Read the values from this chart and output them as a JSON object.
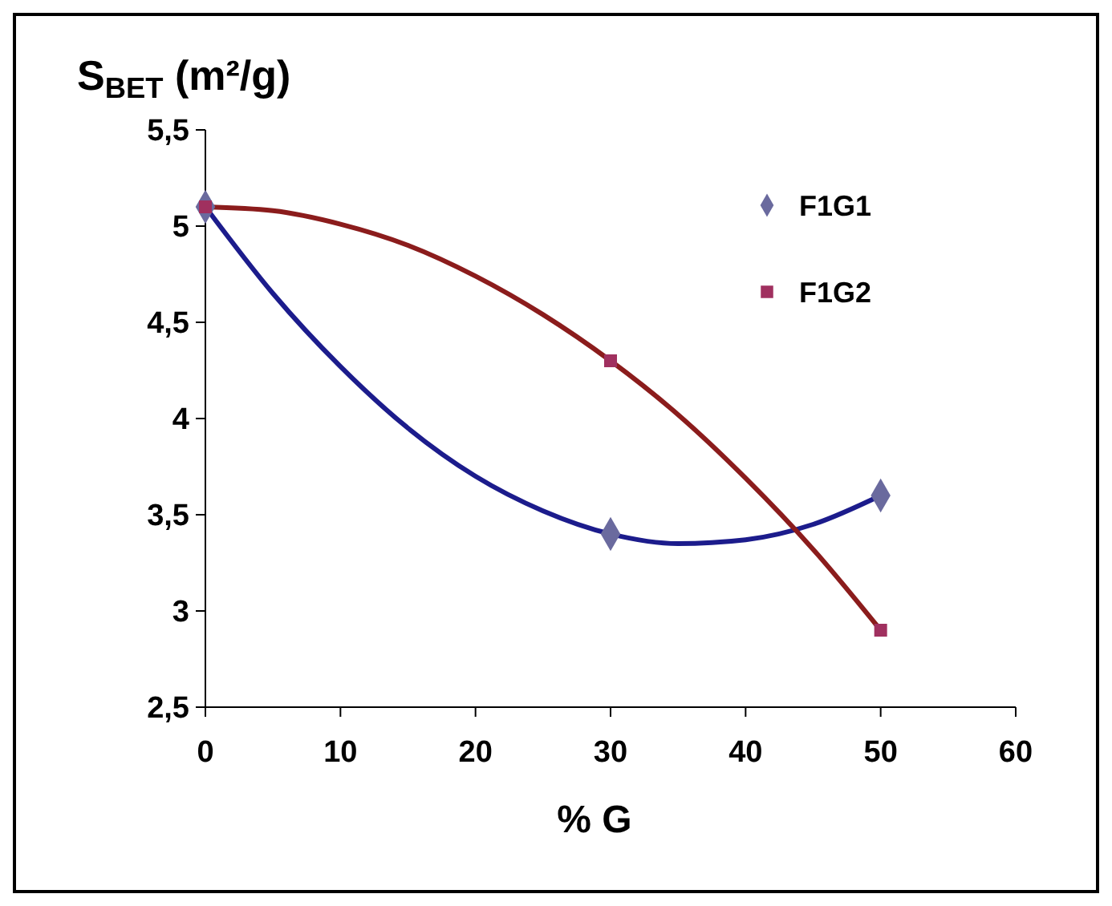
{
  "chart_data": {
    "type": "scatter",
    "ylabel": "S$_{BET}$ (m²/g)",
    "xlabel": "% G",
    "xlim": [
      0,
      60
    ],
    "xticks": [
      0,
      10,
      20,
      30,
      40,
      50,
      60
    ],
    "ylim": [
      2.5,
      5.5
    ],
    "yticks": [
      {
        "value": 2.5,
        "label": "2,5"
      },
      {
        "value": 3,
        "label": "3"
      },
      {
        "value": 3.5,
        "label": "3,5"
      },
      {
        "value": 4,
        "label": "4"
      },
      {
        "value": 4.5,
        "label": "4,5"
      },
      {
        "value": 5,
        "label": "5"
      },
      {
        "value": 5.5,
        "label": "5,5"
      }
    ],
    "grid": false,
    "legend": "top right",
    "series": [
      {
        "name": "F1G1",
        "marker": "diamond",
        "color": "#6a6a9e",
        "x": [
          0,
          30,
          50
        ],
        "values": [
          5.1,
          3.4,
          3.6
        ]
      },
      {
        "name": "F1G2",
        "marker": "square",
        "color": "#a0305f",
        "x": [
          0,
          30,
          50
        ],
        "values": [
          5.1,
          4.3,
          2.9
        ]
      },
      {
        "type": "line",
        "color": "#1c1c8c",
        "x": [
          0,
          5,
          10,
          15,
          20,
          25,
          30,
          35,
          40,
          45,
          50
        ],
        "values": [
          5.1,
          4.65,
          4.27,
          3.95,
          3.7,
          3.52,
          3.4,
          3.35,
          3.37,
          3.45,
          3.6
        ]
      },
      {
        "type": "line",
        "color": "#8b1c1c",
        "x": [
          0,
          5,
          10,
          15,
          20,
          25,
          30,
          35,
          40,
          45,
          50
        ],
        "values": [
          5.1,
          5.08,
          5.01,
          4.9,
          4.74,
          4.54,
          4.3,
          4.02,
          3.69,
          3.32,
          2.9
        ]
      }
    ]
  }
}
